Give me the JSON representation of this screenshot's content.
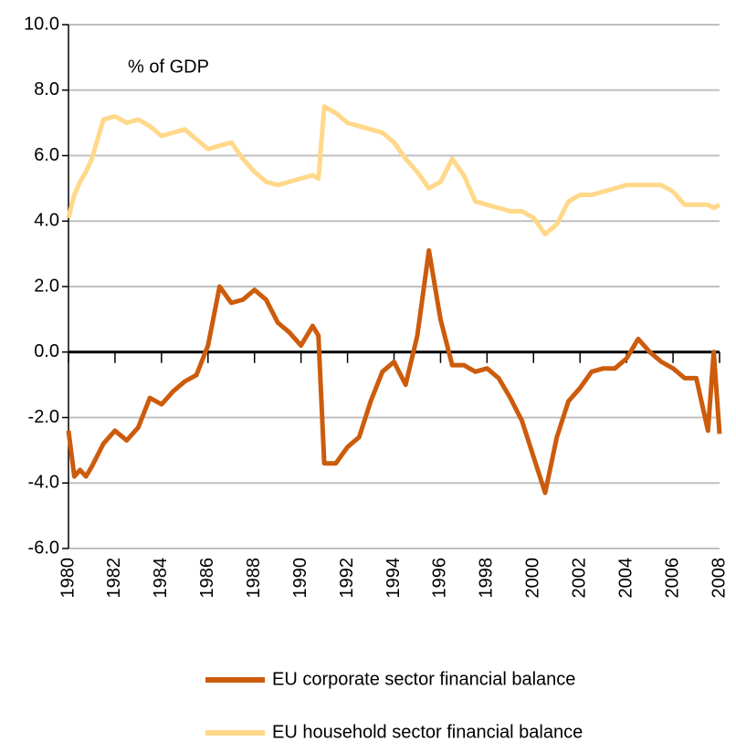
{
  "chart_data": {
    "type": "line",
    "annotation": "% of GDP",
    "x": [
      1980.0,
      1980.25,
      1980.5,
      1980.75,
      1981.0,
      1981.5,
      1982.0,
      1982.5,
      1983.0,
      1983.5,
      1984.0,
      1984.5,
      1985.0,
      1985.5,
      1986.0,
      1986.5,
      1987.0,
      1987.5,
      1988.0,
      1988.5,
      1989.0,
      1989.5,
      1990.0,
      1990.5,
      1990.75,
      1991.0,
      1991.5,
      1992.0,
      1992.5,
      1993.0,
      1993.5,
      1994.0,
      1994.5,
      1995.0,
      1995.5,
      1996.0,
      1996.5,
      1997.0,
      1997.5,
      1998.0,
      1998.5,
      1999.0,
      1999.5,
      2000.0,
      2000.5,
      2001.0,
      2001.5,
      2002.0,
      2002.5,
      2003.0,
      2003.5,
      2004.0,
      2004.5,
      2005.0,
      2005.5,
      2006.0,
      2006.5,
      2007.0,
      2007.5,
      2007.75,
      2008.0
    ],
    "series": [
      {
        "name": "EU corporate sector financial balance",
        "color": "#cc5c0c",
        "values": [
          -2.4,
          -3.8,
          -3.6,
          -3.8,
          -3.5,
          -2.8,
          -2.4,
          -2.7,
          -2.3,
          -1.4,
          -1.6,
          -1.2,
          -0.9,
          -0.7,
          0.2,
          2.0,
          1.5,
          1.6,
          1.9,
          1.6,
          0.9,
          0.6,
          0.2,
          0.8,
          0.5,
          -3.4,
          -3.4,
          -2.9,
          -2.6,
          -1.5,
          -0.6,
          -0.3,
          -1.0,
          0.5,
          3.1,
          1.0,
          -0.4,
          -0.4,
          -0.6,
          -0.5,
          -0.8,
          -1.4,
          -2.1,
          -3.2,
          -4.3,
          -2.6,
          -1.5,
          -1.1,
          -0.6,
          -0.5,
          -0.5,
          -0.2,
          0.4,
          0.0,
          -0.3,
          -0.5,
          -0.8,
          -0.8,
          -2.4,
          0.0,
          -2.5
        ]
      },
      {
        "name": "EU household sector financial balance",
        "color": "#ffd88a",
        "values": [
          4.1,
          4.8,
          5.2,
          5.5,
          5.9,
          7.1,
          7.2,
          7.0,
          7.1,
          6.9,
          6.6,
          6.7,
          6.8,
          6.5,
          6.2,
          6.3,
          6.4,
          5.9,
          5.5,
          5.2,
          5.1,
          5.2,
          5.3,
          5.4,
          5.3,
          7.5,
          7.3,
          7.0,
          6.9,
          6.8,
          6.7,
          6.4,
          5.9,
          5.5,
          5.0,
          5.2,
          5.9,
          5.4,
          4.6,
          4.5,
          4.4,
          4.3,
          4.3,
          4.1,
          3.6,
          3.9,
          4.6,
          4.8,
          4.8,
          4.9,
          5.0,
          5.1,
          5.1,
          5.1,
          5.1,
          4.9,
          4.5,
          4.5,
          4.5,
          4.4,
          4.5
        ]
      }
    ],
    "xlim": [
      1980,
      2008
    ],
    "xticks": [
      1980,
      1982,
      1984,
      1986,
      1988,
      1990,
      1992,
      1994,
      1996,
      1998,
      2000,
      2002,
      2004,
      2006,
      2008
    ],
    "ylim": [
      -6,
      10
    ],
    "yticks": [
      {
        "value": -6,
        "label": "-6.0"
      },
      {
        "value": -4,
        "label": "-4.0"
      },
      {
        "value": -2,
        "label": "-2.0"
      },
      {
        "value": 0,
        "label": "0.0"
      },
      {
        "value": 2,
        "label": "2.0"
      },
      {
        "value": 4,
        "label": "4.0"
      },
      {
        "value": 6,
        "label": "6.0"
      },
      {
        "value": 8,
        "label": "8.0"
      },
      {
        "value": 10,
        "label": "10.0"
      }
    ],
    "grid": true,
    "legend": "bottom"
  }
}
